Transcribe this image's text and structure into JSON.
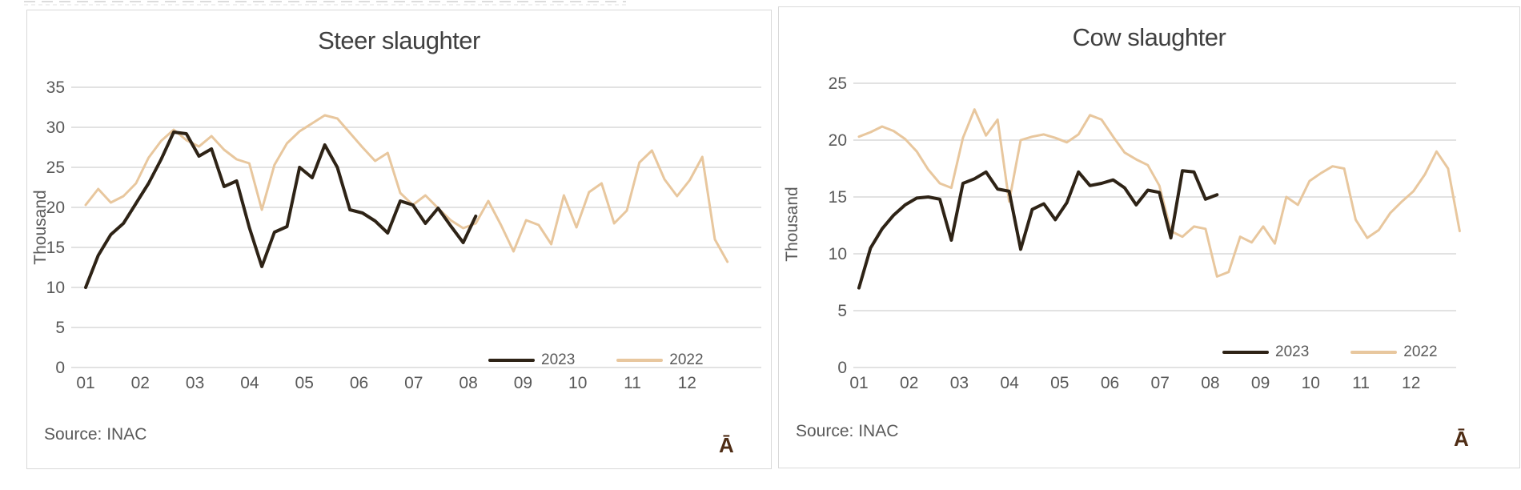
{
  "page": {
    "background": "#ffffff"
  },
  "colors": {
    "grid": "#d9d9d9",
    "axis_text": "#595959",
    "title_text": "#404040",
    "panel_border": "#d9d9d9",
    "series_2023": "#2e2316",
    "series_2022": "#e8c79e",
    "logo": "#4f2d15"
  },
  "chart_data": [
    {
      "type": "line",
      "title": "Steer slaughter",
      "ylabel": "Thousand",
      "ylim": [
        0,
        35
      ],
      "yticks": [
        0,
        5,
        10,
        15,
        20,
        25,
        30,
        35
      ],
      "x_months": [
        "01",
        "02",
        "03",
        "04",
        "05",
        "06",
        "07",
        "08",
        "09",
        "10",
        "11",
        "12"
      ],
      "x_unit": "week",
      "grid": true,
      "legend_position": "inside-bottom-right",
      "source": "Source: INAC",
      "logo_glyph": "Ā",
      "series": [
        {
          "name": "2023",
          "color": "#2e2316",
          "width": 4,
          "values": [
            10.0,
            14.0,
            16.6,
            18.0,
            20.5,
            23.0,
            26.0,
            29.4,
            29.2,
            26.4,
            27.3,
            22.6,
            23.3,
            17.5,
            12.6,
            16.9,
            17.6,
            25.0,
            23.7,
            27.8,
            25.0,
            19.7,
            19.3,
            18.3,
            16.8,
            20.8,
            20.3,
            18.0,
            19.9,
            17.7,
            15.6,
            18.9
          ]
        },
        {
          "name": "2022",
          "color": "#e8c79e",
          "width": 3,
          "values": [
            20.3,
            22.3,
            20.6,
            21.4,
            23.0,
            26.2,
            28.3,
            29.7,
            28.4,
            27.6,
            28.9,
            27.2,
            26.0,
            25.5,
            19.7,
            25.3,
            28.0,
            29.5,
            30.5,
            31.5,
            31.1,
            29.3,
            27.5,
            25.8,
            26.8,
            21.8,
            20.3,
            21.5,
            19.9,
            18.4,
            17.4,
            18.0,
            20.8,
            17.8,
            14.5,
            18.4,
            17.8,
            15.4,
            21.5,
            17.5,
            21.9,
            23.0,
            18.0,
            19.6,
            25.6,
            27.1,
            23.5,
            21.4,
            23.4,
            26.3,
            16.0,
            13.2
          ]
        }
      ]
    },
    {
      "type": "line",
      "title": "Cow slaughter",
      "ylabel": "Thousand",
      "ylim": [
        0,
        25
      ],
      "yticks": [
        0,
        5,
        10,
        15,
        20,
        25
      ],
      "x_months": [
        "01",
        "02",
        "03",
        "04",
        "05",
        "06",
        "07",
        "08",
        "09",
        "10",
        "11",
        "12"
      ],
      "x_unit": "week",
      "grid": true,
      "legend_position": "inside-bottom-right",
      "source": "Source: INAC",
      "logo_glyph": "Ā",
      "series": [
        {
          "name": "2023",
          "color": "#2e2316",
          "width": 4,
          "values": [
            7.0,
            10.5,
            12.2,
            13.4,
            14.3,
            14.9,
            15.0,
            14.8,
            11.2,
            16.2,
            16.6,
            17.2,
            15.7,
            15.5,
            10.4,
            13.9,
            14.4,
            13.0,
            14.5,
            17.2,
            16.0,
            16.2,
            16.5,
            15.8,
            14.3,
            15.6,
            15.4,
            11.4,
            17.3,
            17.2,
            14.8,
            15.2
          ]
        },
        {
          "name": "2022",
          "color": "#e8c79e",
          "width": 3,
          "values": [
            20.3,
            20.7,
            21.2,
            20.8,
            20.1,
            19.0,
            17.4,
            16.2,
            15.8,
            20.2,
            22.7,
            20.4,
            21.8,
            14.6,
            20.0,
            20.3,
            20.5,
            20.2,
            19.8,
            20.5,
            22.2,
            21.8,
            20.3,
            18.9,
            18.3,
            17.8,
            16.0,
            12.0,
            11.5,
            12.4,
            12.2,
            8.0,
            8.4,
            11.5,
            11.0,
            12.4,
            10.9,
            15.0,
            14.3,
            16.4,
            17.1,
            17.7,
            17.5,
            13.0,
            11.4,
            12.1,
            13.6,
            14.6,
            15.5,
            17.0,
            19.0,
            17.5,
            12.0
          ]
        }
      ]
    }
  ]
}
